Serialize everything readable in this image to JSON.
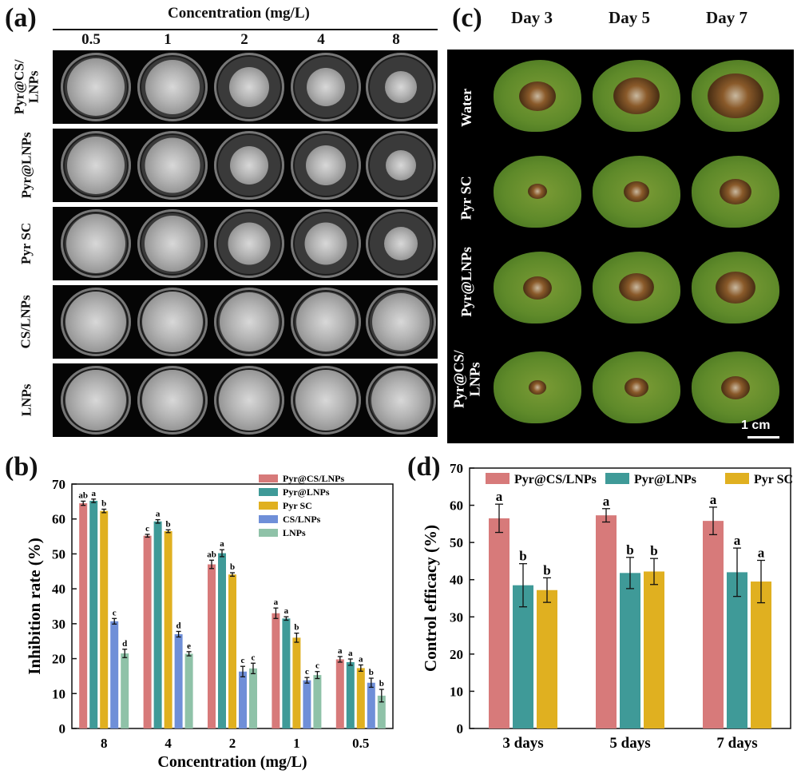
{
  "panel_a": {
    "letter": "(a)",
    "concentration_title": "Concentration (mg/L)",
    "concentrations": [
      "0.5",
      "1",
      "2",
      "4",
      "8"
    ],
    "rows": [
      "Pyr@CS/\nLNPs",
      "Pyr@LNPs",
      "Pyr SC",
      "CS/LNPs",
      "LNPs"
    ]
  },
  "panel_c": {
    "letter": "(c)",
    "days": [
      "Day 3",
      "Day 5",
      "Day 7"
    ],
    "rows": [
      "Water",
      "Pyr SC",
      "Pyr@LNPs",
      "Pyr@CS/\nLNPs"
    ],
    "scale_label": "1 cm"
  },
  "chart_data": [
    {
      "panel": "(b)",
      "type": "bar",
      "title": "",
      "xlabel": "Concentration (mg/L)",
      "ylabel": "Inhibition rate (%)",
      "ylim": [
        0,
        70
      ],
      "yticks": [
        "0",
        "10",
        "20",
        "30",
        "40",
        "50",
        "60",
        "70"
      ],
      "categories": [
        "8",
        "4",
        "2",
        "1",
        "0.5"
      ],
      "legend_position": "top-right",
      "series": [
        {
          "name": "Pyr@CS/LNPs",
          "color": "#d77a7a",
          "values": [
            64.5,
            55.2,
            47.0,
            33.0,
            19.8
          ],
          "errors": [
            0.6,
            0.4,
            1.2,
            1.5,
            0.8
          ],
          "letters": [
            "ab",
            "c",
            "ab",
            "a",
            "a"
          ]
        },
        {
          "name": "Pyr@LNPs",
          "color": "#3f9a98",
          "values": [
            65.2,
            59.3,
            50.2,
            31.5,
            19.0
          ],
          "errors": [
            0.5,
            0.5,
            1.0,
            0.5,
            0.9
          ],
          "letters": [
            "a",
            "a",
            "a",
            "a",
            "a"
          ]
        },
        {
          "name": "Pyr SC",
          "color": "#e0b020",
          "values": [
            62.3,
            56.5,
            44.1,
            26.0,
            17.3
          ],
          "errors": [
            0.5,
            0.4,
            0.5,
            1.3,
            0.9
          ],
          "letters": [
            "b",
            "b",
            "b",
            "b",
            "a"
          ]
        },
        {
          "name": "CS/LNPs",
          "color": "#6f8fd8",
          "values": [
            30.7,
            27.0,
            16.3,
            13.8,
            13.1
          ],
          "errors": [
            0.8,
            0.8,
            1.5,
            0.8,
            1.3
          ],
          "letters": [
            "c",
            "d",
            "c",
            "c",
            "b"
          ]
        },
        {
          "name": "LNPs",
          "color": "#8fc2a8",
          "values": [
            21.5,
            21.4,
            17.2,
            15.3,
            9.4
          ],
          "errors": [
            1.2,
            0.6,
            1.5,
            1.0,
            1.8
          ],
          "letters": [
            "d",
            "e",
            "c",
            "c",
            "b"
          ]
        }
      ]
    },
    {
      "panel": "(d)",
      "type": "bar",
      "title": "",
      "xlabel": "",
      "ylabel": "Control efficacy (%)",
      "ylim": [
        0,
        70
      ],
      "yticks": [
        "0",
        "10",
        "20",
        "30",
        "40",
        "50",
        "60",
        "70"
      ],
      "categories": [
        "3 days",
        "5 days",
        "7 days"
      ],
      "legend_position": "top",
      "series": [
        {
          "name": "Pyr@CS/LNPs",
          "color": "#d77a7a",
          "values": [
            56.5,
            57.3,
            55.8
          ],
          "errors": [
            3.8,
            1.8,
            3.7
          ],
          "letters": [
            "a",
            "a",
            "a"
          ]
        },
        {
          "name": "Pyr@LNPs",
          "color": "#3f9a98",
          "values": [
            38.5,
            41.8,
            42.0
          ],
          "errors": [
            5.8,
            4.2,
            6.5
          ],
          "letters": [
            "b",
            "b",
            "a"
          ]
        },
        {
          "name": "Pyr SC",
          "color": "#e0b020",
          "values": [
            37.2,
            42.2,
            39.5
          ],
          "errors": [
            3.3,
            3.5,
            5.7
          ],
          "letters": [
            "b",
            "b",
            "a"
          ]
        }
      ]
    }
  ]
}
